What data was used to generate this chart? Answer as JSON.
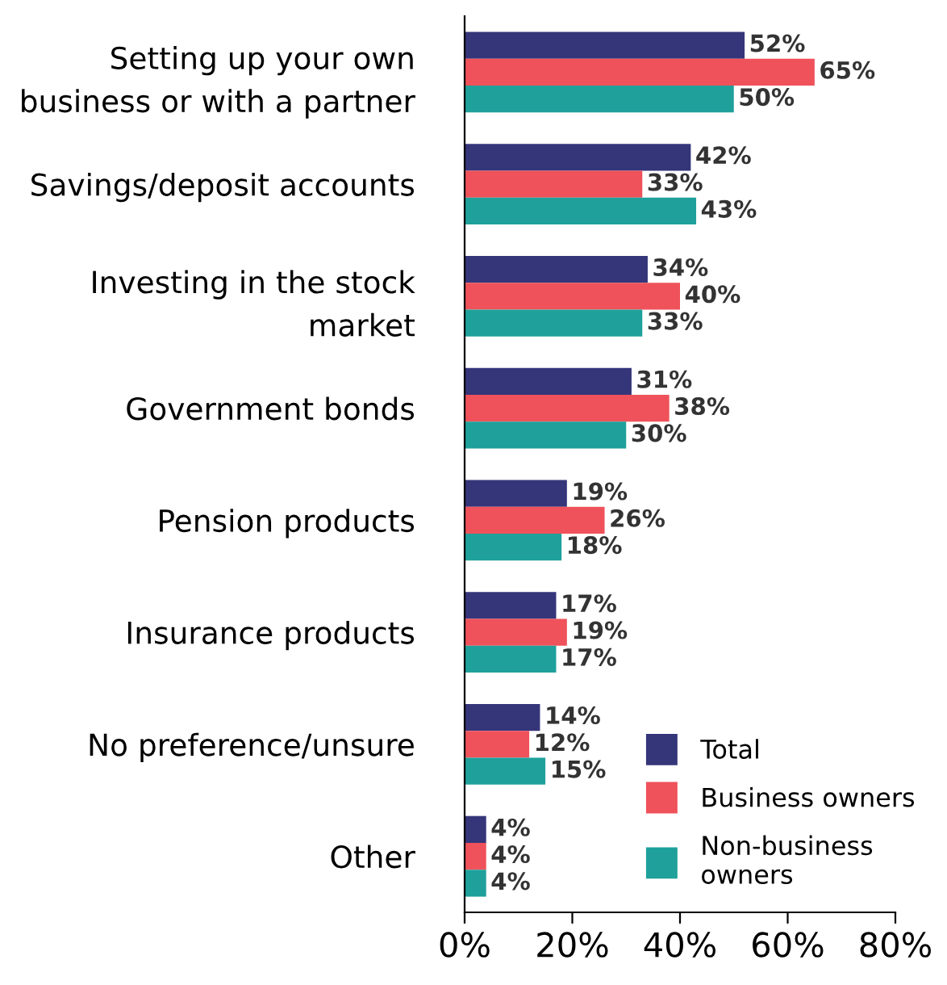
{
  "chart_data": {
    "type": "bar",
    "orientation": "horizontal",
    "categories": [
      "Setting up your own\nbusiness or with a partner",
      "Savings/deposit accounts",
      "Investing in the stock\nmarket",
      "Government bonds",
      "Pension products",
      "Insurance products",
      "No preference/unsure",
      "Other"
    ],
    "series": [
      {
        "name": "Total",
        "color": "#35357a",
        "values": [
          52,
          42,
          34,
          31,
          19,
          17,
          14,
          4
        ],
        "value_labels": [
          "52%",
          "42%",
          "34%",
          "31%",
          "19%",
          "17%",
          "14%",
          "4%"
        ]
      },
      {
        "name": "Business owners",
        "color": "#ef525a",
        "values": [
          65,
          33,
          40,
          38,
          26,
          19,
          12,
          4
        ],
        "value_labels": [
          "65%",
          "33%",
          "40%",
          "38%",
          "26%",
          "19%",
          "12%",
          "4%"
        ]
      },
      {
        "name": "Non-business\nowners",
        "color": "#1fa09b",
        "values": [
          50,
          43,
          33,
          30,
          18,
          17,
          15,
          4
        ],
        "value_labels": [
          "50%",
          "43%",
          "33%",
          "30%",
          "18%",
          "17%",
          "15%",
          "4%"
        ]
      }
    ],
    "xlim": [
      0,
      80
    ],
    "xticks": [
      {
        "value": 0,
        "label": "0%"
      },
      {
        "value": 20,
        "label": "20%"
      },
      {
        "value": 40,
        "label": "40%"
      },
      {
        "value": 60,
        "label": "60%"
      },
      {
        "value": 80,
        "label": "80%"
      }
    ],
    "grid": false,
    "legend": "bottom right"
  }
}
